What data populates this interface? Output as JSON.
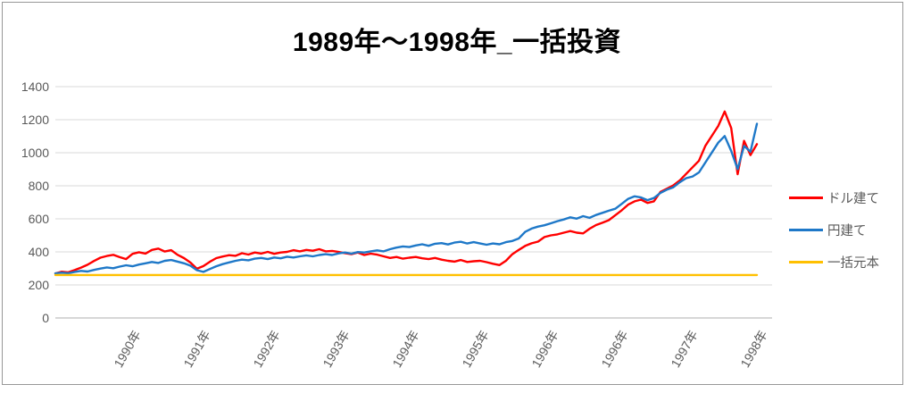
{
  "chart_data": {
    "type": "line",
    "title": "1989年～1998年_一括投資",
    "xlabel": "",
    "ylabel": "",
    "ylim": [
      0,
      1400
    ],
    "y_ticks": [
      0,
      200,
      400,
      600,
      800,
      1000,
      1200,
      1400
    ],
    "x_tick_labels": [
      "1990年",
      "1991年",
      "1992年",
      "1993年",
      "1994年",
      "1995年",
      "1996年",
      "1996年",
      "1997年",
      "1998年"
    ],
    "grid": "horizontal-only",
    "legend_position": "right",
    "series": [
      {
        "name": "ドル建て",
        "color": "#FF0000",
        "values": [
          270,
          280,
          276,
          290,
          305,
          322,
          345,
          365,
          375,
          382,
          368,
          356,
          388,
          398,
          390,
          412,
          420,
          402,
          410,
          382,
          362,
          335,
          298,
          314,
          340,
          362,
          372,
          380,
          376,
          392,
          384,
          396,
          390,
          400,
          388,
          396,
          400,
          410,
          403,
          412,
          407,
          416,
          403,
          406,
          400,
          392,
          386,
          396,
          381,
          389,
          383,
          373,
          363,
          369,
          359,
          365,
          369,
          361,
          356,
          363,
          353,
          346,
          341,
          351,
          339,
          343,
          346,
          338,
          328,
          320,
          346,
          386,
          412,
          436,
          452,
          462,
          490,
          500,
          506,
          516,
          526,
          516,
          512,
          540,
          562,
          576,
          592,
          622,
          652,
          686,
          706,
          716,
          696,
          706,
          762,
          782,
          802,
          832,
          872,
          912,
          952,
          1042,
          1102,
          1162,
          1250,
          1150,
          870,
          1072,
          986,
          1052
        ]
      },
      {
        "name": "円建て",
        "color": "#1E78C8",
        "values": [
          270,
          274,
          271,
          279,
          285,
          281,
          291,
          299,
          306,
          301,
          311,
          319,
          313,
          323,
          331,
          339,
          333,
          346,
          351,
          341,
          331,
          316,
          289,
          279,
          296,
          313,
          326,
          336,
          346,
          353,
          349,
          359,
          363,
          356,
          366,
          361,
          371,
          366,
          373,
          379,
          373,
          381,
          386,
          381,
          391,
          396,
          389,
          399,
          396,
          403,
          409,
          403,
          416,
          426,
          433,
          429,
          439,
          446,
          437,
          449,
          453,
          445,
          456,
          461,
          451,
          459,
          451,
          443,
          451,
          446,
          459,
          466,
          481,
          521,
          541,
          553,
          561,
          573,
          586,
          596,
          609,
          601,
          616,
          606,
          623,
          636,
          649,
          661,
          691,
          721,
          736,
          729,
          713,
          726,
          756,
          776,
          791,
          821,
          846,
          856,
          881,
          941,
          1001,
          1061,
          1101,
          1011,
          901,
          1041,
          1006,
          1175
        ]
      },
      {
        "name": "一括元本",
        "color": "#FFC000",
        "values": [
          260,
          260
        ]
      }
    ],
    "axis_colors": {
      "gridline": "#D9D9D9",
      "axis_line": "#BFBFBF",
      "tick_label": "#595959"
    }
  }
}
